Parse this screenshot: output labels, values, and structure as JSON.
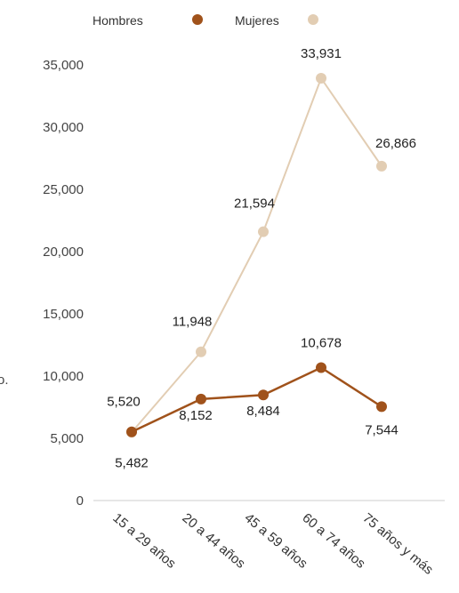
{
  "chart_data": {
    "type": "line",
    "categories": [
      "15 a 29 años",
      "20 a 44 años",
      "45 a 59 años",
      "60 a 74 años",
      "75 años y más"
    ],
    "series": [
      {
        "name": "Hombres",
        "color": "#a0521b",
        "values": [
          5520,
          8152,
          8484,
          10678,
          7544
        ]
      },
      {
        "name": "Mujeres",
        "color": "#e2cdb3",
        "values": [
          5482,
          11948,
          21594,
          33931,
          26866
        ]
      }
    ],
    "y_ticks": [
      "0",
      "5,000",
      "10,000",
      "15,000",
      "20,000",
      "25,000",
      "30,000",
      "35,000"
    ],
    "ylim": [
      0,
      35000
    ],
    "data_labels": {
      "Hombres": [
        "5,520",
        "8,152",
        "8,484",
        "10,678",
        "7,544"
      ],
      "Mujeres": [
        "5,482",
        "11,948",
        "21,594",
        "33,931",
        "26,866"
      ]
    },
    "legend": {
      "position": "top",
      "entries": [
        "Hombres",
        "Mujeres"
      ]
    },
    "grid": false,
    "partial_axis_text": "o."
  }
}
